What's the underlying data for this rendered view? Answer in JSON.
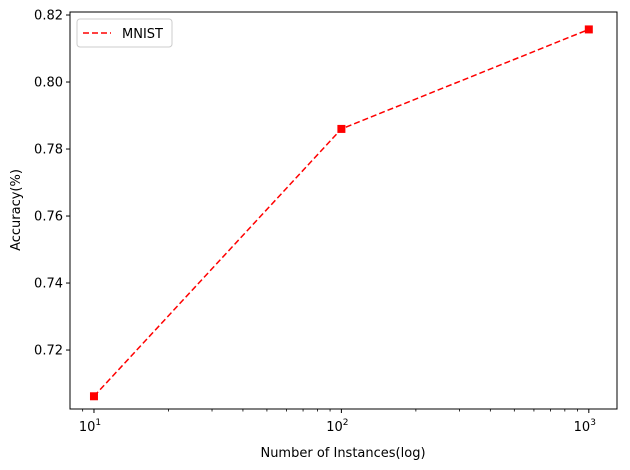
{
  "chart_data": {
    "type": "line",
    "x_scale": "log",
    "xlabel": "Number of Instances(log)",
    "ylabel": "Accuracy(%)",
    "x_ticks": [
      {
        "value": 10,
        "base": "10",
        "exp": "1"
      },
      {
        "value": 100,
        "base": "10",
        "exp": "2"
      },
      {
        "value": 1000,
        "base": "10",
        "exp": "3"
      }
    ],
    "y_ticks": [
      "0.72",
      "0.74",
      "0.76",
      "0.78",
      "0.80",
      "0.82"
    ],
    "xlim": [
      8,
      1300
    ],
    "ylim": [
      0.7024,
      0.8209
    ],
    "grid": false,
    "legend_position": "top-left",
    "series": [
      {
        "name": "MNIST",
        "color": "#ff0000",
        "line_style": "dashed",
        "marker": "square",
        "x": [
          10,
          100,
          1000
        ],
        "y": [
          0.7062,
          0.786,
          0.8157
        ]
      }
    ]
  }
}
